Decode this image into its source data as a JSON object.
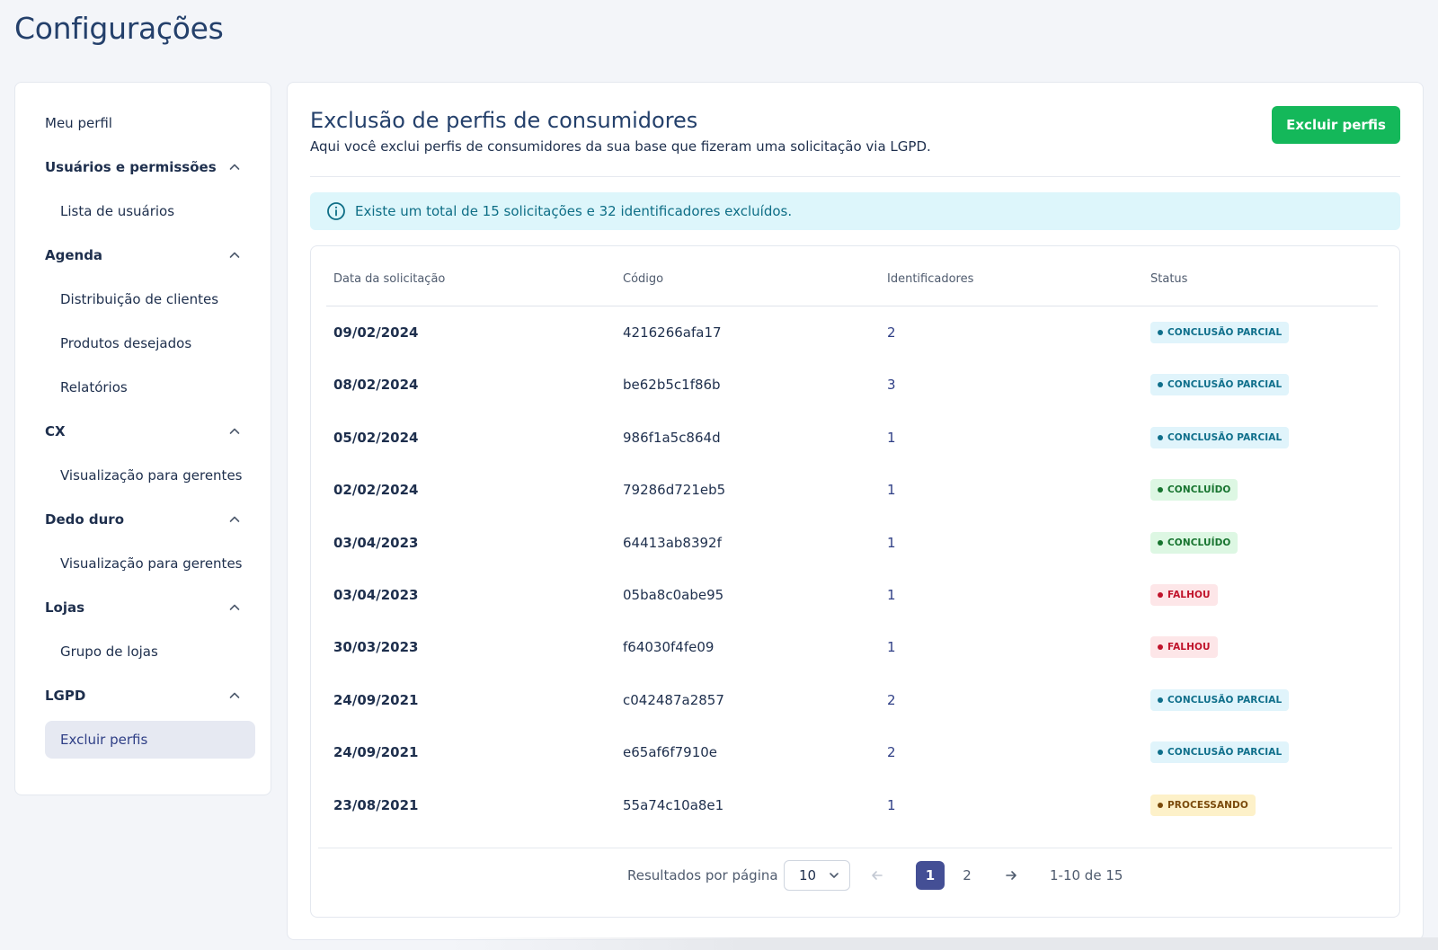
{
  "page": {
    "title": "Configurações"
  },
  "sidebar": {
    "items": [
      {
        "label": "Meu perfil",
        "type": "link"
      },
      {
        "label": "Usuários e permissões",
        "type": "group"
      },
      {
        "label": "Lista de usuários",
        "type": "sub"
      },
      {
        "label": "Agenda",
        "type": "group"
      },
      {
        "label": "Distribuição de clientes",
        "type": "sub"
      },
      {
        "label": "Produtos desejados",
        "type": "sub"
      },
      {
        "label": "Relatórios",
        "type": "sub"
      },
      {
        "label": "CX",
        "type": "group"
      },
      {
        "label": "Visualização para gerentes",
        "type": "sub"
      },
      {
        "label": "Dedo duro",
        "type": "group"
      },
      {
        "label": "Visualização para gerentes",
        "type": "sub"
      },
      {
        "label": "Lojas",
        "type": "group"
      },
      {
        "label": "Grupo de lojas",
        "type": "sub"
      },
      {
        "label": "LGPD",
        "type": "group"
      },
      {
        "label": "Excluir perfis",
        "type": "sub",
        "active": true
      }
    ]
  },
  "main": {
    "title": "Exclusão de perfis de consumidores",
    "subtitle": "Aqui você exclui perfis de consumidores da sua base que fizeram uma solicitação via LGPD.",
    "primary_button": "Excluir perfis",
    "info": "Existe um total de 15 solicitações e 32 identificadores excluídos.",
    "table": {
      "columns": [
        "Data da solicitação",
        "Código",
        "Identificadores",
        "Status"
      ],
      "rows": [
        {
          "date": "09/02/2024",
          "code": "4216266afa17",
          "ids": "2",
          "status": "CONCLUSÃO PARCIAL",
          "kind": "partial"
        },
        {
          "date": "08/02/2024",
          "code": "be62b5c1f86b",
          "ids": "3",
          "status": "CONCLUSÃO PARCIAL",
          "kind": "partial"
        },
        {
          "date": "05/02/2024",
          "code": "986f1a5c864d",
          "ids": "1",
          "status": "CONCLUSÃO PARCIAL",
          "kind": "partial"
        },
        {
          "date": "02/02/2024",
          "code": "79286d721eb5",
          "ids": "1",
          "status": "CONCLUÍDO",
          "kind": "done"
        },
        {
          "date": "03/04/2023",
          "code": "64413ab8392f",
          "ids": "1",
          "status": "CONCLUÍDO",
          "kind": "done"
        },
        {
          "date": "03/04/2023",
          "code": "05ba8c0abe95",
          "ids": "1",
          "status": "FALHOU",
          "kind": "failed"
        },
        {
          "date": "30/03/2023",
          "code": "f64030f4fe09",
          "ids": "1",
          "status": "FALHOU",
          "kind": "failed"
        },
        {
          "date": "24/09/2021",
          "code": "c042487a2857",
          "ids": "2",
          "status": "CONCLUSÃO PARCIAL",
          "kind": "partial"
        },
        {
          "date": "24/09/2021",
          "code": "e65af6f7910e",
          "ids": "2",
          "status": "CONCLUSÃO PARCIAL",
          "kind": "partial"
        },
        {
          "date": "23/08/2021",
          "code": "55a74c10a8e1",
          "ids": "1",
          "status": "PROCESSANDO",
          "kind": "processing"
        }
      ]
    },
    "pagination": {
      "per_page_label": "Resultados por página",
      "per_page_value": "10",
      "pages": [
        "1",
        "2"
      ],
      "current_page": "1",
      "range": "1-10 de 15"
    }
  },
  "colors": {
    "primary_green": "#14b85a",
    "nav_active_bg": "#e6e9f2",
    "pager_active": "#444f95",
    "info_bg": "#ddf6fb",
    "badge_partial_bg": "#e0f4fb",
    "badge_partial_fg": "#0f6f8b",
    "badge_done_bg": "#ddf7e3",
    "badge_done_fg": "#17742f",
    "badge_failed_bg": "#fde6e8",
    "badge_failed_fg": "#c0132b",
    "badge_processing_bg": "#fdf1c9",
    "badge_processing_fg": "#7a4a0b"
  },
  "icons": {
    "chevron": "chevron-up-icon",
    "info": "info-circle-icon",
    "prev": "arrow-left-icon",
    "next": "arrow-right-icon",
    "dropdown": "chevron-down-icon"
  }
}
